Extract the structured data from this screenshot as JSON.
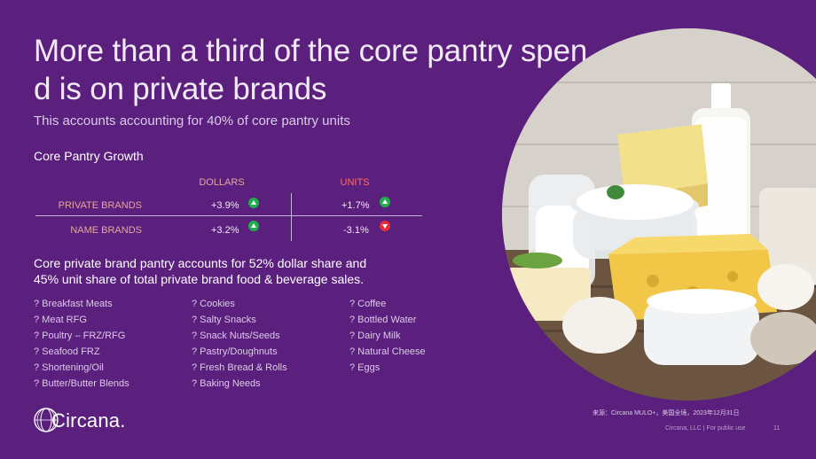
{
  "title": "More than a third of the core pantry spend is on private brands",
  "subtitle": "This accounts accounting for 40% of core pantry units",
  "growth": {
    "section_title": "Core Pantry Growth",
    "col_dollars": "DOLLARS",
    "col_units": "UNITS",
    "rows": [
      {
        "label": "PRIVATE BRANDS",
        "dollars": "+3.9%",
        "units": "+1.7%",
        "dollars_trend": "up",
        "units_trend": "up"
      },
      {
        "label": "NAME BRANDS",
        "dollars": "+3.2%",
        "units": "-3.1%",
        "dollars_trend": "up",
        "units_trend": "down"
      }
    ],
    "colors": {
      "up": "#1fae4b",
      "down": "#e52d3a",
      "label": "#e4a89a",
      "units_head": "#ff6f62"
    }
  },
  "statement": "Core private brand pantry accounts for 52% dollar share and 45% unit share of total private brand food & beverage sales.",
  "categories": {
    "col1": [
      "? Breakfast Meats",
      "? Meat RFG",
      "? Poultry – FRZ/RFG",
      "? Seafood FRZ",
      "? Shortening/Oil",
      "? Butter/Butter Blends"
    ],
    "col2": [
      "? Cookies",
      "? Salty Snacks",
      "? Snack Nuts/Seeds",
      "? Pastry/Doughnuts",
      "? Fresh Bread & Rolls",
      "? Baking Needs"
    ],
    "col3": [
      "? Coffee",
      "? Bottled Water",
      "? Dairy Milk",
      "? Natural Cheese",
      "? Eggs"
    ]
  },
  "logo": {
    "text": "Circana.",
    "icon": "circana-globe-icon"
  },
  "source": "来源：Circana MULO+，美国全境，2023年12月31日",
  "footer": "Circana, LLC | For public use",
  "page_number": "11",
  "theme": {
    "background": "#5b1f7e"
  }
}
